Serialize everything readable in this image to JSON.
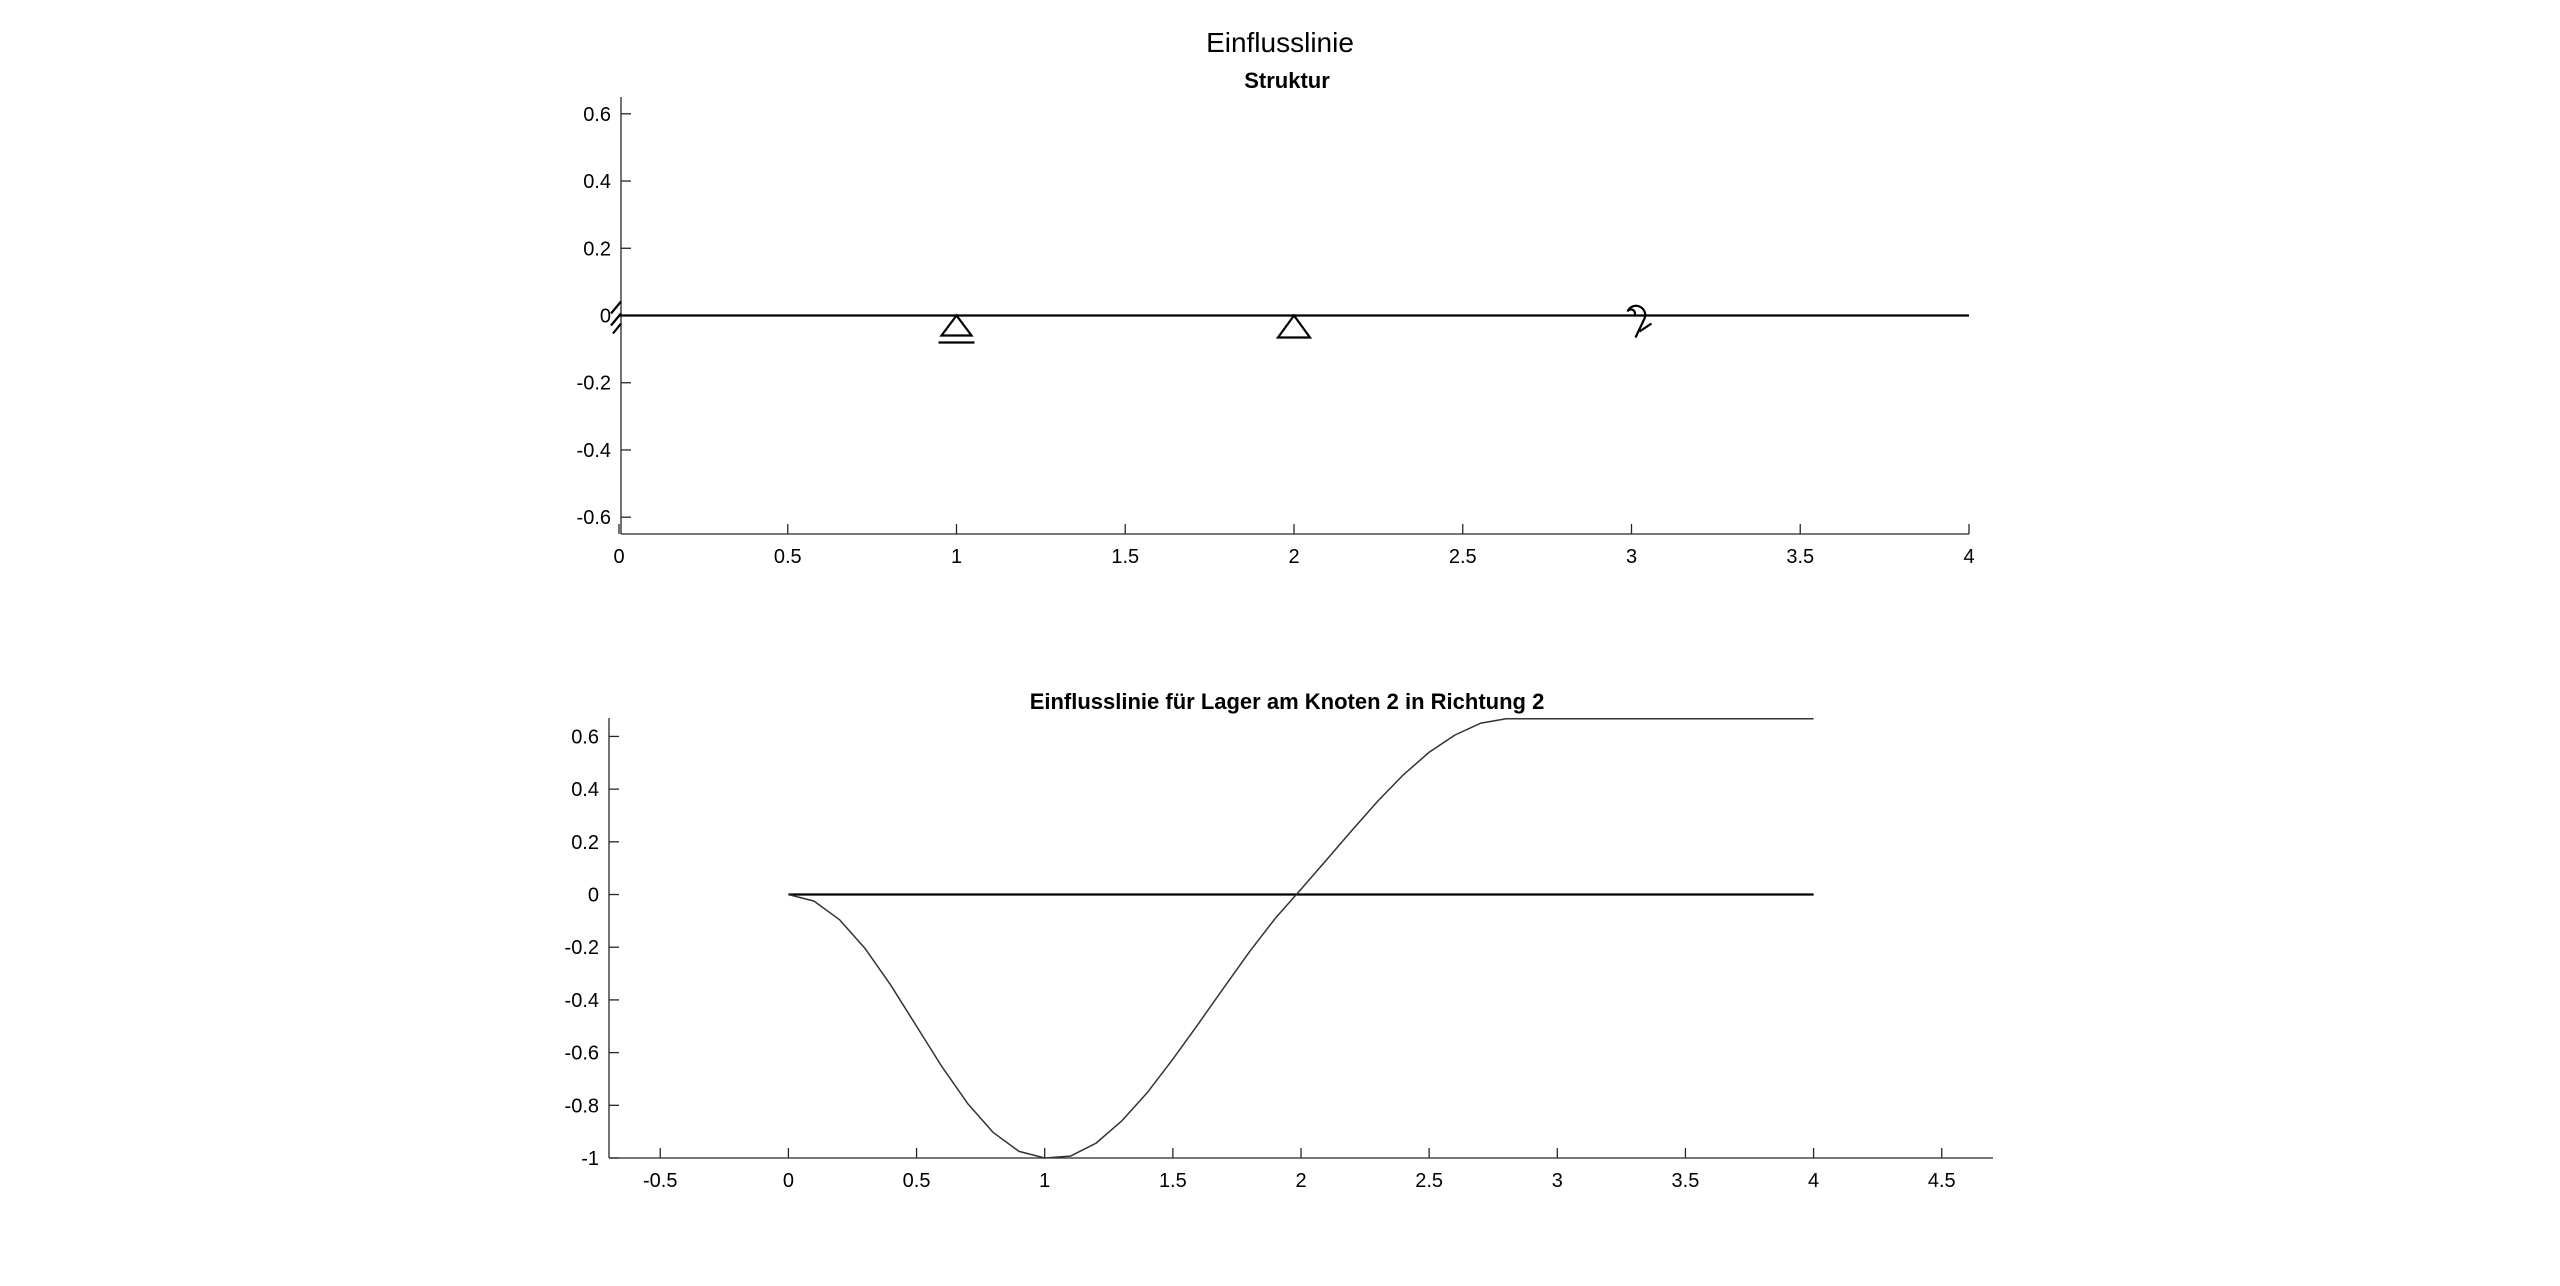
{
  "figure": {
    "title": "Einflusslinie"
  },
  "chart_data": [
    {
      "type": "line",
      "title": "Struktur",
      "xlabel": "",
      "ylabel": "",
      "xlim": [
        0,
        4
      ],
      "ylim": [
        -0.65,
        0.65
      ],
      "xticks": [
        0,
        0.5,
        1,
        1.5,
        2,
        2.5,
        3,
        3.5,
        4
      ],
      "yticks": [
        -0.6,
        -0.4,
        -0.2,
        0,
        0.2,
        0.4,
        0.6
      ],
      "grid": false,
      "series": [
        {
          "x": [
            0,
            4
          ],
          "y": [
            0,
            0
          ],
          "color": "#000000"
        }
      ],
      "supports": [
        {
          "x": 0,
          "kind": "fixed-support"
        },
        {
          "x": 1,
          "kind": "roller-support"
        },
        {
          "x": 2,
          "kind": "pin-support"
        },
        {
          "x": 3,
          "kind": "rotational-spring"
        }
      ]
    },
    {
      "type": "line",
      "title": "Einflusslinie für Lager am Knoten 2 in Richtung 2",
      "xlabel": "",
      "ylabel": "",
      "xlim": [
        -0.7,
        4.7
      ],
      "ylim": [
        -1,
        0.67
      ],
      "xticks": [
        -0.5,
        0,
        0.5,
        1,
        1.5,
        2,
        2.5,
        3,
        3.5,
        4,
        4.5
      ],
      "yticks": [
        -1,
        -0.8,
        -0.6,
        -0.4,
        -0.2,
        0,
        0.2,
        0.4,
        0.6
      ],
      "grid": false,
      "series": [
        {
          "x": [
            0,
            4
          ],
          "y": [
            0,
            0
          ],
          "color": "#000000"
        },
        {
          "x": [
            0,
            0.1,
            0.2,
            0.3,
            0.4,
            0.5,
            0.6,
            0.7,
            0.8,
            0.9,
            1.0,
            1.1,
            1.2,
            1.3,
            1.4,
            1.5,
            1.6,
            1.7,
            1.8,
            1.9,
            2.0,
            2.1,
            2.2,
            2.3,
            2.4,
            2.5,
            2.6,
            2.7,
            2.8,
            2.9,
            3.0,
            4.0
          ],
          "y": [
            0,
            -0.025,
            -0.096,
            -0.206,
            -0.345,
            -0.5,
            -0.655,
            -0.794,
            -0.904,
            -0.975,
            -1.0,
            -0.993,
            -0.944,
            -0.86,
            -0.752,
            -0.625,
            -0.49,
            -0.352,
            -0.216,
            -0.09,
            0.02,
            0.132,
            0.245,
            0.355,
            0.455,
            0.54,
            0.605,
            0.65,
            0.667,
            0.667,
            0.667,
            0.667
          ],
          "color": "#333333"
        }
      ]
    }
  ]
}
